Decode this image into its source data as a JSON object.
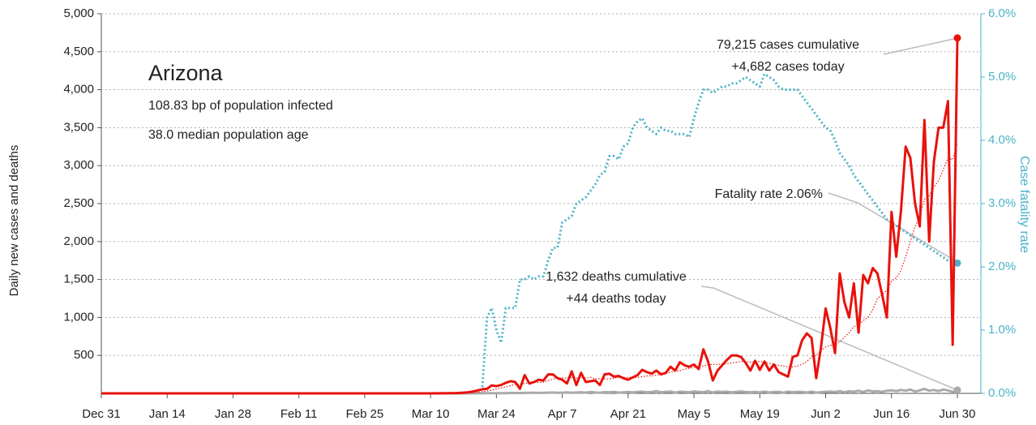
{
  "chart_data": {
    "type": "line",
    "title": "Arizona",
    "subtitle": [
      "108.83 bp of population infected",
      "38.0 median population age"
    ],
    "ylabel": "Daily new cases and deaths",
    "y2label": "Case fatality rate",
    "annotations": [
      "79,215 cases cumulative",
      "+4,682 cases today",
      "Fatality rate 2.06%",
      "1,632 deaths cumulative",
      "+44 deaths today"
    ],
    "grid": true,
    "xlim": [
      0,
      187
    ],
    "xticks": [
      {
        "value": 0,
        "label": "Dec 31"
      },
      {
        "value": 14,
        "label": "Jan 14"
      },
      {
        "value": 28,
        "label": "Jan 28"
      },
      {
        "value": 42,
        "label": "Feb 11"
      },
      {
        "value": 56,
        "label": "Feb 25"
      },
      {
        "value": 70,
        "label": "Mar 10"
      },
      {
        "value": 84,
        "label": "Mar 24"
      },
      {
        "value": 98,
        "label": "Apr 7"
      },
      {
        "value": 112,
        "label": "Apr 21"
      },
      {
        "value": 126,
        "label": "May 5"
      },
      {
        "value": 140,
        "label": "May 19"
      },
      {
        "value": 154,
        "label": "Jun 2"
      },
      {
        "value": 168,
        "label": "Jun 16"
      },
      {
        "value": 182,
        "label": "Jun 30"
      }
    ],
    "ylim": [
      0,
      5000
    ],
    "yticks": [
      500,
      {
        "value": 1000,
        "label": "1,000"
      },
      {
        "value": 1500,
        "label": "1,500"
      },
      {
        "value": 2000,
        "label": "2,000"
      },
      {
        "value": 2500,
        "label": "2,500"
      },
      {
        "value": 3000,
        "label": "3,000"
      },
      {
        "value": 3500,
        "label": "3,500"
      },
      {
        "value": 4000,
        "label": "4,000"
      },
      {
        "value": 4500,
        "label": "4,500"
      },
      {
        "value": 5000,
        "label": "5,000"
      }
    ],
    "y2lim": [
      0,
      6
    ],
    "y2ticks": [
      {
        "value": 0,
        "label": "0.0%"
      },
      {
        "value": 1,
        "label": "1.0%"
      },
      {
        "value": 2,
        "label": "2.0%"
      },
      {
        "value": 3,
        "label": "3.0%"
      },
      {
        "value": 4,
        "label": "4.0%"
      },
      {
        "value": 5,
        "label": "5.0%"
      },
      {
        "value": 6,
        "label": "6.0%"
      }
    ],
    "x": [
      0,
      7,
      14,
      21,
      28,
      35,
      42,
      49,
      56,
      63,
      70,
      74,
      75,
      76,
      77,
      78,
      79,
      80,
      81,
      82,
      83,
      84,
      85,
      86,
      87,
      88,
      89,
      90,
      91,
      92,
      93,
      94,
      95,
      96,
      97,
      98,
      99,
      100,
      101,
      102,
      103,
      104,
      105,
      106,
      107,
      108,
      109,
      110,
      111,
      112,
      113,
      114,
      115,
      116,
      117,
      118,
      119,
      120,
      121,
      122,
      123,
      124,
      125,
      126,
      127,
      128,
      129,
      130,
      131,
      132,
      133,
      134,
      135,
      136,
      137,
      138,
      139,
      140,
      141,
      142,
      143,
      144,
      145,
      146,
      147,
      148,
      149,
      150,
      151,
      152,
      153,
      154,
      155,
      156,
      157,
      158,
      159,
      160,
      161,
      162,
      163,
      164,
      165,
      166,
      167,
      168,
      169,
      170,
      171,
      172,
      173,
      174,
      175,
      176,
      177,
      178,
      179,
      180,
      181,
      182
    ],
    "series": [
      {
        "color": "#4bb3c8",
        "style": "dotted",
        "width": 3,
        "axis": "y2",
        "endpoint": true,
        "values": [
          null,
          null,
          null,
          null,
          null,
          null,
          null,
          null,
          null,
          null,
          null,
          null,
          null,
          null,
          null,
          null,
          null,
          null,
          0.1,
          1.2,
          1.35,
          1.0,
          0.8,
          1.35,
          1.35,
          1.35,
          1.8,
          1.8,
          1.85,
          1.8,
          1.85,
          1.85,
          2.1,
          2.3,
          2.3,
          2.7,
          2.75,
          2.8,
          3.0,
          3.05,
          3.1,
          3.2,
          3.3,
          3.45,
          3.5,
          3.75,
          3.75,
          3.7,
          3.9,
          3.95,
          4.2,
          4.3,
          4.35,
          4.2,
          4.15,
          4.1,
          4.2,
          4.15,
          4.15,
          4.1,
          4.1,
          4.1,
          4.05,
          4.35,
          4.6,
          4.8,
          4.8,
          4.75,
          4.8,
          4.85,
          4.85,
          4.9,
          4.9,
          4.95,
          5.0,
          4.95,
          4.9,
          4.85,
          5.05,
          5.0,
          4.95,
          4.85,
          4.8,
          4.8,
          4.8,
          4.8,
          4.7,
          4.6,
          4.5,
          4.4,
          4.3,
          4.2,
          4.15,
          4.0,
          3.8,
          3.7,
          3.6,
          3.45,
          3.35,
          3.25,
          3.15,
          3.05,
          2.95,
          2.85,
          2.75,
          2.7,
          2.65,
          2.6,
          2.55,
          2.5,
          2.45,
          2.4,
          2.35,
          2.3,
          2.25,
          2.2,
          2.15,
          2.1,
          2.08,
          2.06
        ]
      },
      {
        "color": "#aaaaaa",
        "style": "solid",
        "width": 3,
        "endpoint": true,
        "values": [
          0,
          0,
          0,
          0,
          0,
          0,
          0,
          0,
          0,
          0,
          0,
          0,
          0,
          0,
          0,
          0,
          0,
          1,
          1,
          2,
          2,
          2,
          3,
          3,
          5,
          5,
          4,
          6,
          7,
          8,
          6,
          9,
          10,
          12,
          9,
          10,
          14,
          8,
          12,
          15,
          10,
          18,
          12,
          9,
          16,
          15,
          20,
          11,
          14,
          18,
          12,
          20,
          22,
          15,
          18,
          30,
          14,
          20,
          25,
          10,
          22,
          18,
          15,
          26,
          20,
          16,
          30,
          12,
          25,
          18,
          22,
          14,
          20,
          26,
          18,
          15,
          20,
          14,
          22,
          12,
          18,
          20,
          10,
          24,
          15,
          20,
          18,
          12,
          22,
          10,
          16,
          20,
          25,
          18,
          30,
          15,
          28,
          22,
          35,
          18,
          40,
          25,
          30,
          20,
          35,
          40,
          30,
          45,
          35,
          50,
          25,
          40,
          60,
          35,
          45,
          30,
          50,
          40,
          20,
          44
        ]
      },
      {
        "color": "#e8120c",
        "style": "dotted",
        "width": 1.2,
        "values": [
          0,
          0,
          0,
          0,
          0,
          0,
          0,
          0,
          0,
          0,
          0,
          0,
          0,
          1,
          3,
          5,
          9,
          14,
          22,
          30,
          44,
          57,
          70,
          86,
          103,
          119,
          121,
          130,
          140,
          145,
          144,
          149,
          168,
          190,
          200,
          205,
          200,
          210,
          200,
          210,
          200,
          210,
          190,
          195,
          190,
          190,
          200,
          210,
          210,
          210,
          210,
          210,
          220,
          230,
          230,
          240,
          250,
          260,
          280,
          290,
          300,
          320,
          330,
          340,
          350,
          360,
          380,
          380,
          380,
          390,
          390,
          400,
          410,
          420,
          420,
          410,
          420,
          420,
          410,
          400,
          380,
          370,
          360,
          350,
          350,
          360,
          380,
          420,
          480,
          500,
          560,
          610,
          630,
          640,
          680,
          740,
          800,
          880,
          900,
          960,
          1000,
          1100,
          1250,
          1300,
          1360,
          1480,
          1520,
          1620,
          1800,
          2000,
          2200,
          2330,
          2560,
          2600,
          2720,
          2800,
          2950,
          3100,
          3080,
          3300
        ]
      },
      {
        "color": "#e8120c",
        "style": "solid",
        "width": 3,
        "endpoint": true,
        "values": [
          0,
          0,
          0,
          0,
          0,
          0,
          0,
          0,
          0,
          0,
          0,
          2,
          3,
          5,
          10,
          15,
          25,
          40,
          55,
          60,
          105,
          95,
          110,
          140,
          160,
          150,
          60,
          240,
          130,
          150,
          180,
          170,
          250,
          250,
          200,
          180,
          130,
          290,
          110,
          270,
          150,
          160,
          170,
          110,
          250,
          260,
          220,
          230,
          200,
          180,
          210,
          240,
          310,
          280,
          260,
          300,
          250,
          270,
          350,
          300,
          410,
          370,
          350,
          380,
          320,
          580,
          420,
          170,
          300,
          370,
          440,
          500,
          500,
          480,
          400,
          300,
          430,
          310,
          420,
          300,
          380,
          280,
          250,
          220,
          480,
          500,
          700,
          790,
          730,
          200,
          600,
          1120,
          860,
          530,
          1580,
          1200,
          1000,
          1450,
          800,
          1560,
          1450,
          1650,
          1580,
          1300,
          1000,
          2390,
          1800,
          2400,
          3250,
          3100,
          2500,
          2200,
          3600,
          2000,
          3050,
          3500,
          3500,
          3850,
          640,
          4682
        ]
      }
    ]
  }
}
